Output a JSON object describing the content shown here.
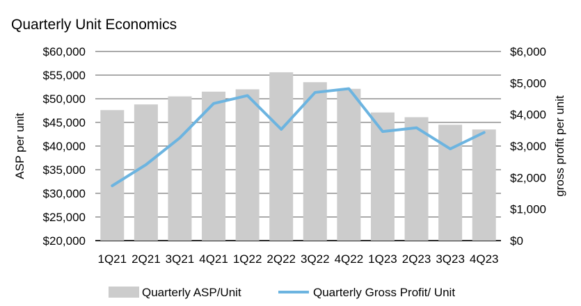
{
  "chart_data": {
    "type": "bar+line",
    "title": "Quarterly Unit Economics",
    "categories": [
      "1Q21",
      "2Q21",
      "3Q21",
      "4Q21",
      "1Q22",
      "2Q22",
      "3Q22",
      "4Q22",
      "1Q23",
      "2Q23",
      "3Q23",
      "4Q23"
    ],
    "series": [
      {
        "name": "Quarterly ASP/Unit",
        "type": "bar",
        "axis": "left",
        "color": "#cccccc",
        "values": [
          47600,
          48800,
          50500,
          51500,
          52000,
          55600,
          53500,
          52100,
          47100,
          46100,
          44500,
          43500
        ]
      },
      {
        "name": "Quarterly Gross Profit/ Unit",
        "type": "line",
        "axis": "right",
        "color": "#6cb4e0",
        "values": [
          1740,
          2410,
          3260,
          4350,
          4600,
          3530,
          4700,
          4820,
          3460,
          3580,
          2910,
          3430
        ]
      }
    ],
    "ylabel": "ASP per unit",
    "ylabel_right": "gross profit per unit",
    "ylim": [
      20000,
      60000
    ],
    "ylim_right": [
      0,
      6000
    ],
    "yticks": [
      "$20,000",
      "$25,000",
      "$30,000",
      "$35,000",
      "$40,000",
      "$45,000",
      "$50,000",
      "$55,000",
      "$60,000"
    ],
    "yticks_right": [
      "$0",
      "$1,000",
      "$2,000",
      "$3,000",
      "$4,000",
      "$5,000",
      "$6,000"
    ],
    "grid": true,
    "legend": "bottom"
  }
}
